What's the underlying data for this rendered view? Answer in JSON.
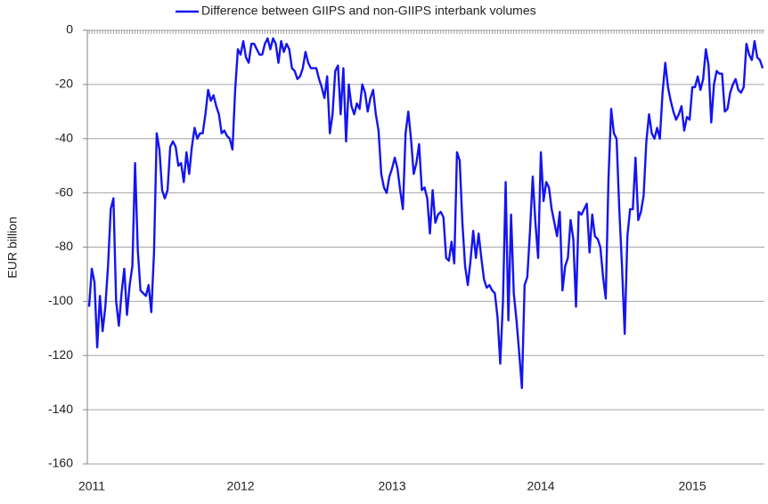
{
  "chart_data": {
    "type": "line",
    "y_label": "EUR billion",
    "categories": [
      null,
      "2011",
      null,
      null,
      null,
      null,
      null,
      null,
      null,
      null,
      null,
      null,
      null,
      null,
      null,
      null,
      null,
      null,
      null,
      null,
      null,
      null,
      null,
      null,
      null,
      null,
      null,
      null,
      null,
      null,
      null,
      null,
      null,
      null,
      null,
      null,
      null,
      null,
      null,
      null,
      null,
      null,
      null,
      null,
      null,
      null,
      null,
      null,
      null,
      null,
      null,
      null,
      null,
      null,
      null,
      null,
      "2012",
      null,
      null,
      null,
      null,
      null,
      null,
      null,
      null,
      null,
      null,
      null,
      null,
      null,
      null,
      null,
      null,
      null,
      null,
      null,
      null,
      null,
      null,
      null,
      null,
      null,
      null,
      null,
      null,
      null,
      null,
      null,
      null,
      null,
      null,
      null,
      null,
      null,
      null,
      null,
      null,
      null,
      null,
      null,
      null,
      null,
      null,
      null,
      null,
      null,
      null,
      null,
      null,
      null,
      null,
      null,
      "2013",
      null,
      null,
      null,
      null,
      null,
      null,
      null,
      null,
      null,
      null,
      null,
      null,
      null,
      null,
      null,
      null,
      null,
      null,
      null,
      null,
      null,
      null,
      null,
      null,
      null,
      null,
      null,
      null,
      null,
      null,
      null,
      null,
      null,
      null,
      null,
      null,
      null,
      null,
      null,
      null,
      null,
      null,
      null,
      null,
      null,
      null,
      null,
      null,
      null,
      null,
      null,
      null,
      null,
      null,
      "2014",
      null,
      null,
      null,
      null,
      null,
      null,
      null,
      null,
      null,
      null,
      null,
      null,
      null,
      null,
      null,
      null,
      null,
      null,
      null,
      null,
      null,
      null,
      null,
      null,
      null,
      null,
      null,
      null,
      null,
      null,
      null,
      null,
      null,
      null,
      null,
      null,
      null,
      null,
      null,
      null,
      null,
      null,
      null,
      null,
      null,
      null,
      null,
      null,
      null,
      null,
      null,
      null,
      null,
      null,
      null,
      "2015",
      null,
      null,
      null,
      null,
      null,
      null,
      null,
      null,
      null,
      null,
      null,
      null,
      null,
      null,
      null,
      null,
      null,
      null,
      null,
      null,
      null,
      null,
      null,
      null,
      null,
      null
    ],
    "series": [
      {
        "name": "Difference between GIIPS and non-GIIPS interbank volumes",
        "color": "#1414f0",
        "values": [
          -102,
          -88,
          -93,
          -117,
          -98,
          -111,
          -102,
          -87,
          -66,
          -62,
          -100,
          -109,
          -97,
          -88,
          -105,
          -94,
          -87,
          -49,
          -81,
          -96,
          -97,
          -98,
          -94,
          -104,
          -82,
          -38,
          -44,
          -59,
          -62,
          -59,
          -43,
          -41,
          -43,
          -50,
          -49,
          -56,
          -45,
          -53,
          -43,
          -36,
          -40,
          -38,
          -38,
          -31,
          -22,
          -26,
          -24,
          -28,
          -31,
          -38,
          -37,
          -39,
          -40,
          -44,
          -22,
          -7,
          -9,
          -4,
          -10,
          -12,
          -5,
          -5,
          -7,
          -9,
          -9,
          -5,
          -3,
          -7,
          -3,
          -5,
          -12,
          -4,
          -8,
          -5,
          -7,
          -14,
          -15,
          -18,
          -17,
          -14,
          -8,
          -12,
          -14,
          -14,
          -14,
          -18,
          -21,
          -25,
          -17,
          -38,
          -31,
          -15,
          -13,
          -31,
          -14,
          -41,
          -20,
          -28,
          -31,
          -27,
          -29,
          -20,
          -23,
          -30,
          -25,
          -22,
          -31,
          -37,
          -53,
          -58,
          -60,
          -54,
          -51,
          -47,
          -51,
          -59,
          -66,
          -38,
          -30,
          -40,
          -53,
          -49,
          -42,
          -59,
          -58,
          -62,
          -75,
          -59,
          -71,
          -68,
          -67,
          -69,
          -84,
          -85,
          -78,
          -86,
          -45,
          -48,
          -71,
          -87,
          -94,
          -85,
          -74,
          -84,
          -75,
          -84,
          -92,
          -95,
          -94,
          -96,
          -97,
          -106,
          -123,
          -100,
          -56,
          -107,
          -68,
          -97,
          -107,
          -119,
          -132,
          -94,
          -91,
          -74,
          -54,
          -71,
          -84,
          -45,
          -63,
          -56,
          -58,
          -66,
          -71,
          -76,
          -67,
          -96,
          -87,
          -84,
          -70,
          -77,
          -102,
          -67,
          -68,
          -66,
          -64,
          -82,
          -68,
          -76,
          -77,
          -80,
          -91,
          -99,
          -55,
          -29,
          -38,
          -40,
          -66,
          -87,
          -112,
          -76,
          -66,
          -66,
          -47,
          -70,
          -67,
          -61,
          -41,
          -31,
          -38,
          -40,
          -36,
          -40,
          -23,
          -12,
          -21,
          -26,
          -30,
          -33,
          -31,
          -28,
          -37,
          -32,
          -33,
          -21,
          -21,
          -17,
          -22,
          -18,
          -7,
          -13,
          -34,
          -20,
          -15,
          -16,
          -16,
          -30,
          -29,
          -23,
          -20,
          -18,
          -22,
          -23,
          -21,
          -5,
          -9,
          -11,
          -4,
          -10,
          -11,
          -14
        ]
      }
    ],
    "ylim": [
      -160,
      0
    ],
    "yticks": [
      0,
      -20,
      -40,
      -60,
      -80,
      -100,
      -120,
      -140,
      -160
    ],
    "grid": true,
    "legend": "top"
  }
}
